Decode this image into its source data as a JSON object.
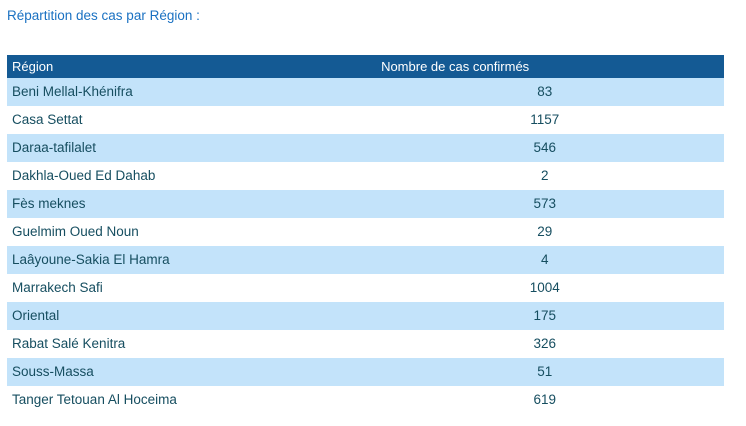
{
  "page": {
    "title": "Répartition des cas par Région :"
  },
  "colors": {
    "title_text": "#1A71C2",
    "header_bg": "#145A94",
    "header_text": "#FFFFFF",
    "row_bg": "#FFFFFF",
    "row_alt_bg": "#C3E3FA",
    "cell_text": "#164E60"
  },
  "table": {
    "columns": [
      "Région",
      "Nombre de cas confirmés"
    ],
    "rows": [
      {
        "region": "Beni Mellal-Khénifra",
        "cases": "83"
      },
      {
        "region": "Casa Settat",
        "cases": "1157"
      },
      {
        "region": "Daraa-tafilalet",
        "cases": "546"
      },
      {
        "region": "Dakhla-Oued Ed Dahab",
        "cases": "2"
      },
      {
        "region": "Fès meknes",
        "cases": "573"
      },
      {
        "region": "Guelmim Oued Noun",
        "cases": "29"
      },
      {
        "region": "Laâyoune-Sakia El Hamra",
        "cases": "4"
      },
      {
        "region": "Marrakech Safi",
        "cases": "1004"
      },
      {
        "region": "Oriental",
        "cases": "175"
      },
      {
        "region": "Rabat Salé Kenitra",
        "cases": "326"
      },
      {
        "region": "Souss-Massa",
        "cases": "51"
      },
      {
        "region": "Tanger Tetouan Al Hoceima",
        "cases": "619"
      }
    ]
  },
  "chart_data": {
    "type": "table",
    "title": "Répartition des cas par Région :",
    "columns": [
      "Région",
      "Nombre de cas confirmés"
    ],
    "categories": [
      "Beni Mellal-Khénifra",
      "Casa Settat",
      "Daraa-tafilalet",
      "Dakhla-Oued Ed Dahab",
      "Fès meknes",
      "Guelmim Oued Noun",
      "Laâyoune-Sakia El Hamra",
      "Marrakech Safi",
      "Oriental",
      "Rabat Salé Kenitra",
      "Souss-Massa",
      "Tanger Tetouan Al Hoceima"
    ],
    "values": [
      83,
      1157,
      546,
      2,
      573,
      29,
      4,
      1004,
      175,
      326,
      51,
      619
    ],
    "layout": {
      "header_style": "dark-blue with white text",
      "row_striping": "alternating light-blue / white, first data row light-blue",
      "value_alignment": "center",
      "region_alignment": "left"
    }
  }
}
